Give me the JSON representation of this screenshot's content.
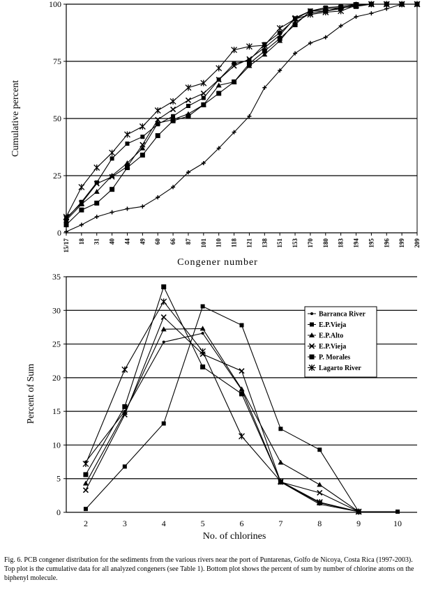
{
  "chart_data": [
    {
      "type": "line",
      "title": "",
      "xlabel": "Congener  number",
      "ylabel": "Cumulative percent",
      "ylim": [
        0,
        100
      ],
      "yticks": [
        "0",
        "25",
        "50",
        "75",
        "100"
      ],
      "grid": "horizontal",
      "legend": "none",
      "categories": [
        "15/17",
        "18",
        "31",
        "40",
        "44",
        "49",
        "60",
        "66",
        "87",
        "101",
        "110",
        "118",
        "121",
        "138",
        "151",
        "153",
        "170",
        "180",
        "183",
        "194",
        "195",
        "196",
        "199",
        "209"
      ],
      "series": [
        {
          "values": [
            0.5,
            3.5,
            7,
            9,
            10.5,
            11.5,
            15.5,
            20,
            26.5,
            30.5,
            37,
            44,
            51,
            63.5,
            71,
            78.5,
            83,
            85.5,
            90.5,
            94.5,
            96,
            98,
            100,
            100
          ]
        },
        {
          "values": [
            3.5,
            10,
            13,
            19,
            28.5,
            34,
            42.5,
            49,
            51,
            56,
            61,
            66,
            74,
            79.5,
            85,
            91,
            97,
            97,
            98.5,
            99,
            100,
            100,
            100,
            100
          ]
        },
        {
          "values": [
            5.5,
            12.5,
            18,
            25,
            30.5,
            37,
            48,
            49.5,
            52,
            56,
            64.5,
            66,
            73,
            78,
            84,
            92,
            96,
            97,
            98,
            100,
            100,
            100,
            100,
            100
          ]
        },
        {
          "values": [
            6,
            13.5,
            22,
            32.5,
            39,
            42,
            47.5,
            51,
            55.5,
            59,
            67,
            74,
            75.5,
            82.5,
            87.5,
            93.5,
            97,
            98.5,
            99,
            100,
            100,
            100,
            100,
            100
          ]
        },
        {
          "values": [
            6.5,
            13,
            21.5,
            24.5,
            29,
            38.5,
            49.5,
            54,
            58,
            61,
            67,
            73,
            76,
            81,
            86.5,
            94,
            97,
            98,
            98.5,
            99.5,
            100,
            100,
            100,
            100
          ]
        },
        {
          "values": [
            7,
            20,
            28.5,
            35,
            43,
            46.5,
            53.5,
            57.5,
            63.5,
            65.5,
            72,
            80,
            81.5,
            82,
            89.5,
            93.5,
            95.5,
            96.5,
            97,
            99.5,
            100,
            100,
            100,
            100
          ]
        }
      ]
    },
    {
      "type": "line",
      "title": "",
      "xlabel": "No. of chlorines",
      "ylabel": "Percent of Sum",
      "ylim": [
        0,
        35
      ],
      "yticks": [
        "0",
        "5",
        "10",
        "15",
        "20",
        "25",
        "30",
        "35"
      ],
      "xticks": [
        "2",
        "3",
        "4",
        "5",
        "6",
        "7",
        "8",
        "9",
        "10"
      ],
      "grid": "horizontal",
      "legend": "top-right",
      "series": [
        {
          "name": "Barranca River",
          "marker": "dot",
          "x": [
            2,
            3,
            4,
            5,
            6,
            7,
            8,
            9
          ],
          "values": [
            7.5,
            15,
            25.3,
            26.6,
            18.2,
            4.5,
            1.2,
            0.1
          ]
        },
        {
          "name": "E.P.Vieja",
          "marker": "square",
          "x": [
            2,
            3,
            4,
            5,
            6,
            7,
            8,
            9,
            10
          ],
          "values": [
            0.5,
            6.8,
            13.2,
            30.6,
            27.8,
            12.4,
            9.3,
            0.1,
            0.1
          ]
        },
        {
          "name": "E.P.Alto",
          "marker": "triangle",
          "x": [
            2,
            3,
            4,
            5,
            6,
            7,
            8,
            9
          ],
          "values": [
            4.3,
            14.8,
            27.2,
            27.3,
            18.3,
            7.4,
            4.1,
            0.1
          ]
        },
        {
          "name": "E.P.Vieja",
          "marker": "x",
          "x": [
            2,
            3,
            4,
            5,
            6,
            7,
            8,
            9
          ],
          "values": [
            3.3,
            14.5,
            29,
            23.5,
            21,
            4.5,
            2.9,
            0.1
          ]
        },
        {
          "name": "P. Morales",
          "marker": "bigsquare",
          "x": [
            2,
            3,
            4,
            5,
            6,
            7,
            8,
            9
          ],
          "values": [
            5.6,
            15.7,
            33.5,
            21.6,
            17.6,
            4.5,
            1.4,
            0.1
          ]
        },
        {
          "name": "Lagarto River",
          "marker": "star",
          "x": [
            2,
            3,
            4,
            5,
            6,
            7,
            8,
            9
          ],
          "values": [
            7.2,
            21.2,
            31.3,
            23.9,
            11.3,
            4.6,
            1.5,
            0.1
          ]
        }
      ]
    }
  ],
  "caption": "Fig. 6.  PCB congener distribution for the sediments from the various rivers near the port of Puntarenas, Golfo de Nicoya, Costa Rica (1997-2003).  Top plot is the cumulative data for all analyzed congeners (see Table 1).  Bottom plot shows the percent of sum by number of chlorine atoms on the biphenyl molecule."
}
